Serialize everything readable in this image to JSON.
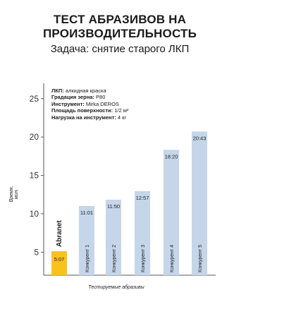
{
  "title": "ТЕСТ АБРАЗИВОВ НА ПРОИЗВОДИТЕЛЬНОСТЬ",
  "subtitle": "Задача: снятие старого ЛКП",
  "params": [
    {
      "label": "ЛКП:",
      "value": "алкидная краска"
    },
    {
      "label": "Градация зерна:",
      "value": "P80"
    },
    {
      "label": "Инструмент:",
      "value": "Mirka DEROS"
    },
    {
      "label": "Площадь поверхности:",
      "value": "1/2 м²"
    },
    {
      "label": "Нагрузка на инструмент:",
      "value": "4 кг"
    }
  ],
  "colors": {
    "highlight": "#f9c21b",
    "bar": "#c5d6ea",
    "axis": "#555555"
  },
  "chart_data": {
    "type": "bar",
    "ylabel": "Время, мин.",
    "xlabel": "Тестируемые абразивы",
    "ylim": [
      2,
      27
    ],
    "yticks": [
      5,
      10,
      15,
      20,
      25
    ],
    "categories": [
      "Abranet",
      "Конкурент 1",
      "Конкурент 2",
      "Конкурент 3",
      "Конкурент 4",
      "Конкурент 5"
    ],
    "values": [
      5.12,
      11.02,
      11.83,
      12.95,
      18.33,
      20.72
    ],
    "value_labels": [
      "5:07",
      "11:01",
      "11:50",
      "12:57",
      "18:20",
      "20:43"
    ],
    "highlight_index": 0
  }
}
